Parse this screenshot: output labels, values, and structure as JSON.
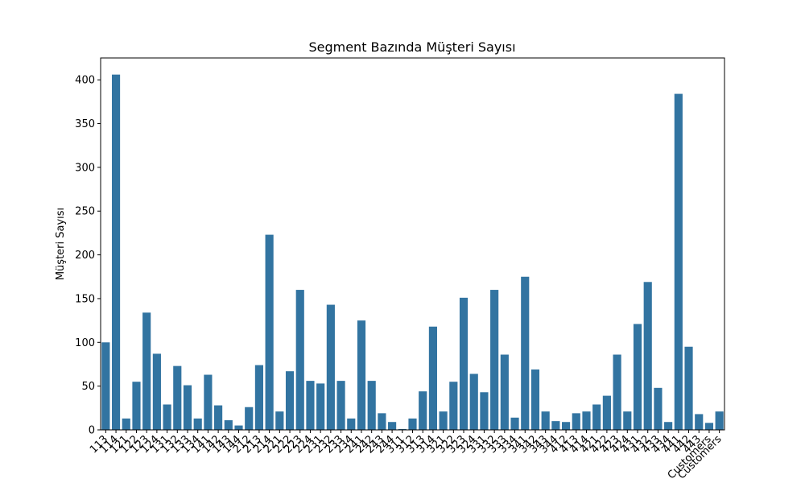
{
  "chart_data": {
    "type": "bar",
    "title": "Segment Bazında Müşteri Sayısı",
    "xlabel": "",
    "ylabel": "Müşteri Sayısı",
    "ylim": [
      0,
      425
    ],
    "yticks": [
      0,
      50,
      100,
      150,
      200,
      250,
      300,
      350,
      400
    ],
    "grid": false,
    "bar_color": "#3274a1",
    "categories": [
      "113",
      "114",
      "121",
      "122",
      "123",
      "124",
      "131",
      "132",
      "133",
      "134",
      "141",
      "142",
      "143",
      "144",
      "212",
      "213",
      "214",
      "221",
      "222",
      "223",
      "224",
      "231",
      "232",
      "233",
      "234",
      "241",
      "242",
      "243",
      "244",
      "311",
      "312",
      "313",
      "314",
      "321",
      "322",
      "323",
      "324",
      "331",
      "332",
      "333",
      "334",
      "341",
      "342",
      "343",
      "344",
      "412",
      "413",
      "414",
      "421",
      "422",
      "423",
      "424",
      "431",
      "432",
      "433",
      "434",
      "441",
      "442",
      "443",
      "Customers",
      "Customers"
    ],
    "values": [
      100,
      406,
      13,
      55,
      134,
      87,
      29,
      73,
      51,
      13,
      63,
      28,
      11,
      5,
      26,
      74,
      223,
      21,
      67,
      160,
      56,
      53,
      143,
      56,
      13,
      125,
      56,
      19,
      9,
      1,
      13,
      44,
      118,
      21,
      55,
      151,
      64,
      43,
      160,
      86,
      14,
      175,
      69,
      21,
      10,
      9,
      19,
      21,
      29,
      39,
      86,
      21,
      121,
      169,
      48,
      9,
      384,
      95,
      18,
      8,
      21
    ]
  }
}
